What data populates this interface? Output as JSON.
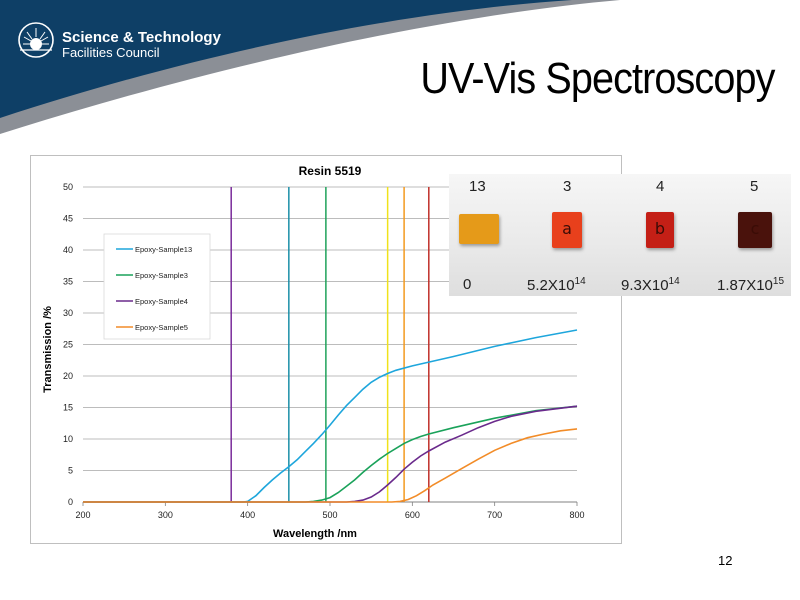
{
  "header": {
    "logo_line1": "Science & Technology",
    "logo_line2": "Facilities Council",
    "slide_title": "UV-Vis Spectroscopy",
    "banner_color": "#0e3f66",
    "accent_color": "#8b8f96"
  },
  "chart_data": {
    "type": "line",
    "title": "Resin 5519",
    "xlabel": "Wavelength /nm",
    "ylabel": "Transmission /%",
    "xlim": [
      200,
      800
    ],
    "ylim": [
      0,
      50
    ],
    "x_ticks": [
      200,
      300,
      400,
      500,
      600,
      700,
      800
    ],
    "y_ticks": [
      0,
      5,
      10,
      15,
      20,
      25,
      30,
      35,
      40,
      45,
      50
    ],
    "grid": "horizontal",
    "legend_position": "left",
    "series": [
      {
        "name": "Epoxy-Sample13",
        "color": "#1ea6dc",
        "points": [
          [
            200,
            0
          ],
          [
            395,
            0
          ],
          [
            400,
            0.1
          ],
          [
            410,
            1
          ],
          [
            420,
            2.3
          ],
          [
            430,
            3.5
          ],
          [
            440,
            4.6
          ],
          [
            450,
            5.6
          ],
          [
            460,
            6.7
          ],
          [
            470,
            8
          ],
          [
            480,
            9.3
          ],
          [
            490,
            10.7
          ],
          [
            500,
            12.2
          ],
          [
            510,
            13.8
          ],
          [
            520,
            15.3
          ],
          [
            530,
            16.6
          ],
          [
            540,
            17.9
          ],
          [
            550,
            19
          ],
          [
            560,
            19.8
          ],
          [
            570,
            20.4
          ],
          [
            580,
            20.9
          ],
          [
            600,
            21.6
          ],
          [
            620,
            22.2
          ],
          [
            650,
            23.1
          ],
          [
            700,
            24.7
          ],
          [
            750,
            26.1
          ],
          [
            800,
            27.3
          ]
        ]
      },
      {
        "name": "Epoxy-Sample3",
        "color": "#1aa25a",
        "points": [
          [
            200,
            0
          ],
          [
            470,
            0
          ],
          [
            480,
            0.1
          ],
          [
            490,
            0.3
          ],
          [
            500,
            0.7
          ],
          [
            510,
            1.5
          ],
          [
            520,
            2.5
          ],
          [
            530,
            3.5
          ],
          [
            540,
            4.7
          ],
          [
            550,
            5.8
          ],
          [
            560,
            6.8
          ],
          [
            570,
            7.7
          ],
          [
            580,
            8.5
          ],
          [
            590,
            9.3
          ],
          [
            600,
            9.9
          ],
          [
            610,
            10.4
          ],
          [
            620,
            10.8
          ],
          [
            650,
            11.8
          ],
          [
            700,
            13.3
          ],
          [
            750,
            14.5
          ],
          [
            800,
            15.2
          ]
        ]
      },
      {
        "name": "Epoxy-Sample4",
        "color": "#6a2a8c",
        "points": [
          [
            200,
            0
          ],
          [
            520,
            0
          ],
          [
            530,
            0.1
          ],
          [
            540,
            0.3
          ],
          [
            550,
            0.8
          ],
          [
            560,
            1.6
          ],
          [
            570,
            2.7
          ],
          [
            580,
            3.9
          ],
          [
            590,
            5.2
          ],
          [
            600,
            6.3
          ],
          [
            610,
            7.3
          ],
          [
            620,
            8.1
          ],
          [
            640,
            9.5
          ],
          [
            660,
            10.6
          ],
          [
            680,
            11.8
          ],
          [
            700,
            12.8
          ],
          [
            720,
            13.6
          ],
          [
            750,
            14.4
          ],
          [
            800,
            15.2
          ]
        ]
      },
      {
        "name": "Epoxy-Sample5",
        "color": "#f28c28",
        "points": [
          [
            200,
            0
          ],
          [
            575,
            0
          ],
          [
            585,
            0.1
          ],
          [
            595,
            0.4
          ],
          [
            605,
            1
          ],
          [
            615,
            1.8
          ],
          [
            625,
            2.7
          ],
          [
            640,
            3.8
          ],
          [
            660,
            5.3
          ],
          [
            680,
            6.8
          ],
          [
            700,
            8.2
          ],
          [
            720,
            9.3
          ],
          [
            740,
            10.2
          ],
          [
            760,
            10.8
          ],
          [
            780,
            11.3
          ],
          [
            800,
            11.6
          ]
        ]
      }
    ],
    "vertical_lines": [
      {
        "x": 380,
        "color": "#7a2b9a"
      },
      {
        "x": 450,
        "color": "#1b8fa8"
      },
      {
        "x": 495,
        "color": "#1fa25a"
      },
      {
        "x": 570,
        "color": "#f0e21a"
      },
      {
        "x": 590,
        "color": "#f39a1f"
      },
      {
        "x": 620,
        "color": "#c0302a"
      }
    ]
  },
  "photo": {
    "samples": [
      {
        "number": "13",
        "dose": "0",
        "dose_exp": "",
        "letter": "",
        "color": "#e59a19"
      },
      {
        "number": "3",
        "dose": "5.2X10",
        "dose_exp": "14",
        "letter": "a",
        "color": "#e8401c"
      },
      {
        "number": "4",
        "dose": "9.3X10",
        "dose_exp": "14",
        "letter": "b",
        "color": "#c41f16"
      },
      {
        "number": "5",
        "dose": "1.87X10",
        "dose_exp": "15",
        "letter": "c",
        "color": "#4a120c"
      }
    ]
  },
  "footer": {
    "page_number": "12"
  }
}
